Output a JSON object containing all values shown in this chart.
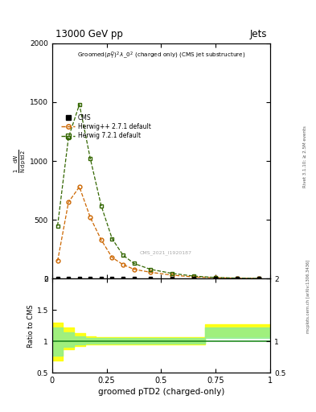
{
  "title_top": "13000 GeV pp",
  "title_right": "Jets",
  "xlabel": "groomed pTD2 (charged-only)",
  "ylabel_ratio": "Ratio to CMS",
  "right_label": "Rivet 3.1.10; ≥ 2.5M events",
  "watermark": "mcplots.cern.ch [arXiv:1306.3436]",
  "cms_note": "CMS_2021_I1920187",
  "herwig_pp_x": [
    0.025,
    0.075,
    0.125,
    0.175,
    0.225,
    0.275,
    0.325,
    0.375,
    0.45,
    0.55,
    0.65,
    0.75,
    0.85,
    0.95
  ],
  "herwig_pp_y": [
    150,
    650,
    780,
    520,
    330,
    180,
    120,
    80,
    55,
    30,
    15,
    8,
    4,
    2
  ],
  "herwig72_x": [
    0.025,
    0.075,
    0.125,
    0.175,
    0.225,
    0.275,
    0.325,
    0.375,
    0.45,
    0.55,
    0.65,
    0.75,
    0.85,
    0.95
  ],
  "herwig72_y": [
    450,
    1200,
    1480,
    1020,
    620,
    340,
    200,
    130,
    80,
    45,
    22,
    10,
    5,
    2
  ],
  "cms_x": [
    0.025,
    0.075,
    0.125,
    0.175,
    0.225,
    0.275,
    0.325,
    0.375,
    0.45,
    0.55,
    0.65,
    0.75,
    0.85,
    0.95
  ],
  "cms_y": [
    2,
    2,
    2,
    2,
    2,
    2,
    2,
    2,
    2,
    2,
    2,
    2,
    2,
    2
  ],
  "herwig_pp_color": "#cc6600",
  "herwig72_color": "#336600",
  "cms_color": "#000000",
  "ylim_main": [
    0,
    2000
  ],
  "xlim": [
    0,
    1
  ],
  "ylim_ratio": [
    0.5,
    2.0
  ],
  "band_pp_x": [
    0.0,
    0.05,
    0.1,
    0.15,
    0.2,
    0.25,
    0.3,
    0.5,
    0.7,
    1.0
  ],
  "band_pp_y1": [
    0.7,
    0.88,
    0.93,
    0.95,
    0.95,
    0.95,
    0.95,
    0.95,
    1.08,
    1.08
  ],
  "band_pp_y2": [
    1.3,
    1.22,
    1.13,
    1.08,
    1.07,
    1.07,
    1.07,
    1.07,
    1.28,
    1.28
  ],
  "band_72_x": [
    0.0,
    0.05,
    0.1,
    0.15,
    0.2,
    0.25,
    0.3,
    0.5,
    0.7,
    1.0
  ],
  "band_72_y1": [
    0.78,
    0.92,
    0.95,
    0.96,
    0.96,
    0.96,
    0.96,
    0.96,
    1.06,
    1.06
  ],
  "band_72_y2": [
    1.22,
    1.14,
    1.08,
    1.06,
    1.06,
    1.06,
    1.06,
    1.06,
    1.22,
    1.22
  ],
  "yticks_main": [
    0,
    500,
    1000,
    1500,
    2000
  ],
  "ytick_labels_main": [
    "0",
    "500",
    "1000",
    "1500",
    "2000"
  ],
  "xticks": [
    0,
    0.25,
    0.5,
    0.75,
    1.0
  ],
  "xtick_labels": [
    "0",
    "0.25",
    "0.5",
    "0.75",
    "1"
  ],
  "yticks_ratio": [
    0.5,
    1.0,
    1.5,
    2.0
  ],
  "ytick_labels_ratio": [
    "0.5",
    "1",
    "1.5",
    "2"
  ],
  "yticks_ratio_right": [
    0.5,
    1.0,
    2.0
  ],
  "ytick_labels_ratio_right": [
    "0.5",
    "1",
    "2"
  ]
}
